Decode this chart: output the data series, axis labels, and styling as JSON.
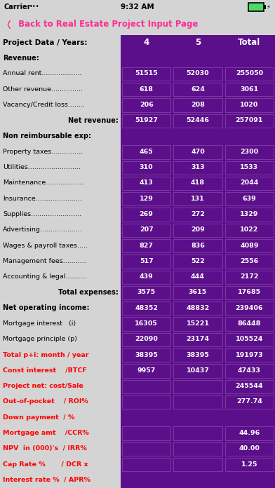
{
  "rows": [
    {
      "label": "Revenue:",
      "vals": [
        "",
        "",
        ""
      ],
      "style": "bold_left",
      "is_section": true
    },
    {
      "label": "Annual rent...................",
      "vals": [
        "51515",
        "52030",
        "255050"
      ],
      "style": "normal"
    },
    {
      "label": "Other revenue...............",
      "vals": [
        "618",
        "624",
        "3061"
      ],
      "style": "normal"
    },
    {
      "label": "Vacancy/Credit loss........",
      "vals": [
        "206",
        "208",
        "1020"
      ],
      "style": "normal"
    },
    {
      "label": "Net revenue:",
      "vals": [
        "51927",
        "52446",
        "257091"
      ],
      "style": "bold_right"
    },
    {
      "label": "Non reimbursable exp:",
      "vals": [
        "",
        "",
        ""
      ],
      "style": "bold_left",
      "is_section": true
    },
    {
      "label": "Property taxes...............",
      "vals": [
        "465",
        "470",
        "2300"
      ],
      "style": "normal"
    },
    {
      "label": "Utilities.........................",
      "vals": [
        "310",
        "313",
        "1533"
      ],
      "style": "normal"
    },
    {
      "label": "Maintenance..................",
      "vals": [
        "413",
        "418",
        "2044"
      ],
      "style": "normal"
    },
    {
      "label": "Insurance......................",
      "vals": [
        "129",
        "131",
        "639"
      ],
      "style": "normal"
    },
    {
      "label": "Supplies........................",
      "vals": [
        "269",
        "272",
        "1329"
      ],
      "style": "normal"
    },
    {
      "label": "Advertising....................",
      "vals": [
        "207",
        "209",
        "1022"
      ],
      "style": "normal"
    },
    {
      "label": "Wages & payroll taxes.....",
      "vals": [
        "827",
        "836",
        "4089"
      ],
      "style": "normal"
    },
    {
      "label": "Management fees...........",
      "vals": [
        "517",
        "522",
        "2556"
      ],
      "style": "normal"
    },
    {
      "label": "Accounting & legal..........",
      "vals": [
        "439",
        "444",
        "2172"
      ],
      "style": "normal"
    },
    {
      "label": "Total expenses:",
      "vals": [
        "3575",
        "3615",
        "17685"
      ],
      "style": "bold_right"
    },
    {
      "label": "Net operating income:",
      "vals": [
        "48352",
        "48832",
        "239406"
      ],
      "style": "bold_left"
    },
    {
      "label": "Mortgage interest   (i)",
      "vals": [
        "16305",
        "15221",
        "86448"
      ],
      "style": "normal"
    },
    {
      "label": "Mortgage principle (p)",
      "vals": [
        "22090",
        "23174",
        "105524"
      ],
      "style": "normal"
    },
    {
      "label": "Total p+i: month / year",
      "vals": [
        "38395",
        "38395",
        "191973"
      ],
      "style": "red_bold"
    },
    {
      "label": "Const interest    /BTCF",
      "vals": [
        "9957",
        "10437",
        "47433"
      ],
      "style": "red_bold"
    },
    {
      "label": "Project net: cost/Sale",
      "vals": [
        "",
        "",
        "245544"
      ],
      "style": "red_bold"
    },
    {
      "label": "Out-of-pocket    / ROI%",
      "vals": [
        "",
        "",
        "277.74"
      ],
      "style": "red_bold"
    },
    {
      "label": "Down payment  / %",
      "vals": [
        "",
        "",
        ""
      ],
      "style": "red_bold",
      "no_empty_boxes": true
    },
    {
      "label": "Mortgage amt    /CCR%",
      "vals": [
        "",
        "",
        "44.96"
      ],
      "style": "red_bold"
    },
    {
      "label": "NPV  in (000)'s  / IRR%",
      "vals": [
        "",
        "",
        "40.00"
      ],
      "style": "red_bold"
    },
    {
      "label": "Cap Rate %       / DCR x",
      "vals": [
        "",
        "",
        "1.25"
      ],
      "style": "red_bold"
    },
    {
      "label": "Interest rate %  / APR%",
      "vals": [
        "",
        "",
        ""
      ],
      "style": "red_bold",
      "no_empty_boxes": true
    }
  ],
  "purple": "#5c0f8b",
  "light_gray": "#d4d4d4",
  "white": "#ffffff",
  "black": "#000000",
  "red": "#ff0000",
  "pink": "#ff2d92",
  "box_border": "#7a3aa0"
}
